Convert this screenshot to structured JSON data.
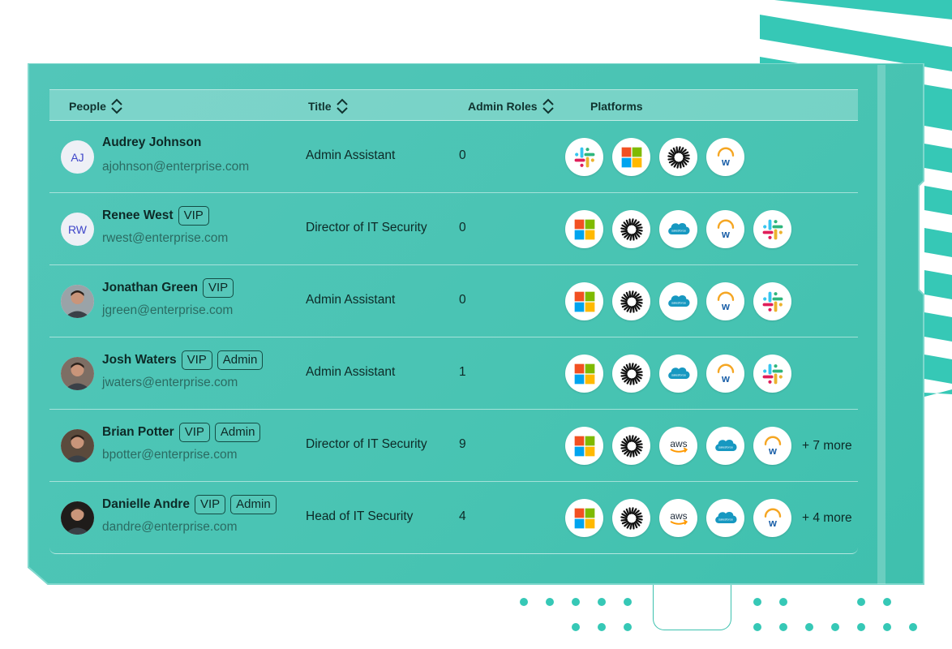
{
  "table": {
    "headers": {
      "people": "People",
      "title": "Title",
      "admin_roles": "Admin Roles",
      "platforms": "Platforms"
    },
    "rows": [
      {
        "initials": "AJ",
        "name": "Audrey Johnson",
        "badges": [],
        "email": "ajohnson@enterprise.com",
        "title": "Admin Assistant",
        "admin_roles": "0",
        "platforms": [
          "slack-icon",
          "microsoft-icon",
          "okta-icon",
          "workday-icon"
        ],
        "more": ""
      },
      {
        "initials": "RW",
        "name": "Renee West",
        "badges": [
          "VIP"
        ],
        "email": "rwest@enterprise.com",
        "title": "Director of IT Security",
        "admin_roles": "0",
        "platforms": [
          "microsoft-icon",
          "okta-icon",
          "salesforce-icon",
          "workday-icon",
          "slack-icon"
        ],
        "more": ""
      },
      {
        "initials": "",
        "name": "Jonathan Green",
        "badges": [
          "VIP"
        ],
        "email": "jgreen@enterprise.com",
        "title": "Admin Assistant",
        "admin_roles": "0",
        "platforms": [
          "microsoft-icon",
          "okta-icon",
          "salesforce-icon",
          "workday-icon",
          "slack-icon"
        ],
        "more": ""
      },
      {
        "initials": "",
        "name": "Josh Waters",
        "badges": [
          "VIP",
          "Admin"
        ],
        "email": "jwaters@enterprise.com",
        "title": "Admin Assistant",
        "admin_roles": "1",
        "platforms": [
          "microsoft-icon",
          "okta-icon",
          "salesforce-icon",
          "workday-icon",
          "slack-icon"
        ],
        "more": ""
      },
      {
        "initials": "",
        "name": "Brian Potter",
        "badges": [
          "VIP",
          "Admin"
        ],
        "email": "bpotter@enterprise.com",
        "title": "Director of IT Security",
        "admin_roles": "9",
        "platforms": [
          "microsoft-icon",
          "okta-icon",
          "aws-icon",
          "salesforce-icon",
          "workday-icon"
        ],
        "more": "+ 7 more"
      },
      {
        "initials": "",
        "name": "Danielle Andre",
        "badges": [
          "VIP",
          "Admin"
        ],
        "email": "dandre@enterprise.com",
        "title": "Head of IT Security",
        "admin_roles": "4",
        "platforms": [
          "microsoft-icon",
          "okta-icon",
          "aws-icon",
          "salesforce-icon",
          "workday-icon"
        ],
        "more": "+ 4 more"
      }
    ]
  },
  "platform_logos": {
    "salesforce": "salesforce",
    "aws": "aws"
  },
  "colors": {
    "panel": "#49c4b3",
    "accent": "#36c8b6",
    "initials_text": "#3f46c9"
  }
}
